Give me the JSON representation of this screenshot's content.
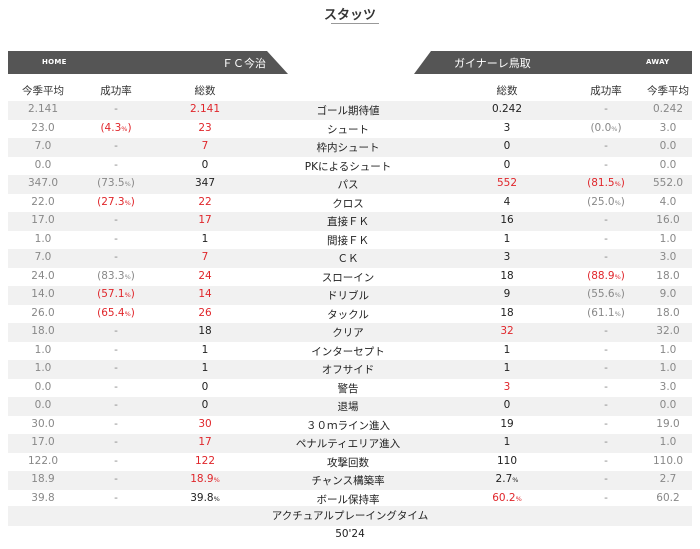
{
  "page_title": "スタッツ",
  "home": {
    "tag": "HOME",
    "name": "ＦＣ今治"
  },
  "away": {
    "tag": "AWAY",
    "name": "ガイナーレ鳥取"
  },
  "headers": {
    "season_avg": "今季平均",
    "success_rate": "成功率",
    "total": "総数"
  },
  "colors": {
    "highlight": "#e0262b",
    "bar": "#555555",
    "shade": "#f1f1f1"
  },
  "rows": [
    {
      "label": "ゴール期待値",
      "home_avg": "2.141",
      "home_pct": "-",
      "home_total": "2.141",
      "away_total": "0.242",
      "away_pct": "-",
      "away_avg": "0.242",
      "home_hi": true,
      "away_hi": false,
      "home_total_unit": "",
      "away_total_unit": ""
    },
    {
      "label": "シュート",
      "home_avg": "23.0",
      "home_pct": "(4.3",
      "home_pct_unit": "%",
      "home_pct_close": ")",
      "home_total": "23",
      "away_total": "3",
      "away_pct": "(0.0",
      "away_pct_unit": "%",
      "away_pct_close": ")",
      "away_avg": "3.0",
      "home_hi": true,
      "away_hi": false,
      "home_pct_hi": true,
      "away_pct_hi": false
    },
    {
      "label": "枠内シュート",
      "home_avg": "7.0",
      "home_pct": "-",
      "home_total": "7",
      "away_total": "0",
      "away_pct": "-",
      "away_avg": "0.0",
      "home_hi": true,
      "away_hi": false
    },
    {
      "label": "PKによるシュート",
      "home_avg": "0.0",
      "home_pct": "-",
      "home_total": "0",
      "away_total": "0",
      "away_pct": "-",
      "away_avg": "0.0",
      "home_hi": false,
      "away_hi": false
    },
    {
      "label": "パス",
      "home_avg": "347.0",
      "home_pct": "(73.5",
      "home_pct_unit": "%",
      "home_pct_close": ")",
      "home_total": "347",
      "away_total": "552",
      "away_pct": "(81.5",
      "away_pct_unit": "%",
      "away_pct_close": ")",
      "away_avg": "552.0",
      "home_hi": false,
      "away_hi": true,
      "home_pct_hi": false,
      "away_pct_hi": true
    },
    {
      "label": "クロス",
      "home_avg": "22.0",
      "home_pct": "(27.3",
      "home_pct_unit": "%",
      "home_pct_close": ")",
      "home_total": "22",
      "away_total": "4",
      "away_pct": "(25.0",
      "away_pct_unit": "%",
      "away_pct_close": ")",
      "away_avg": "4.0",
      "home_hi": true,
      "away_hi": false,
      "home_pct_hi": true,
      "away_pct_hi": false
    },
    {
      "label": "直接ＦＫ",
      "home_avg": "17.0",
      "home_pct": "-",
      "home_total": "17",
      "away_total": "16",
      "away_pct": "-",
      "away_avg": "16.0",
      "home_hi": true,
      "away_hi": false
    },
    {
      "label": "間接ＦＫ",
      "home_avg": "1.0",
      "home_pct": "-",
      "home_total": "1",
      "away_total": "1",
      "away_pct": "-",
      "away_avg": "1.0",
      "home_hi": false,
      "away_hi": false
    },
    {
      "label": "ＣＫ",
      "home_avg": "7.0",
      "home_pct": "-",
      "home_total": "7",
      "away_total": "3",
      "away_pct": "-",
      "away_avg": "3.0",
      "home_hi": true,
      "away_hi": false
    },
    {
      "label": "スローイン",
      "home_avg": "24.0",
      "home_pct": "(83.3",
      "home_pct_unit": "%",
      "home_pct_close": ")",
      "home_total": "24",
      "away_total": "18",
      "away_pct": "(88.9",
      "away_pct_unit": "%",
      "away_pct_close": ")",
      "away_avg": "18.0",
      "home_hi": true,
      "away_hi": false,
      "home_pct_hi": false,
      "away_pct_hi": true
    },
    {
      "label": "ドリブル",
      "home_avg": "14.0",
      "home_pct": "(57.1",
      "home_pct_unit": "%",
      "home_pct_close": ")",
      "home_total": "14",
      "away_total": "9",
      "away_pct": "(55.6",
      "away_pct_unit": "%",
      "away_pct_close": ")",
      "away_avg": "9.0",
      "home_hi": true,
      "away_hi": false,
      "home_pct_hi": true,
      "away_pct_hi": false
    },
    {
      "label": "タックル",
      "home_avg": "26.0",
      "home_pct": "(65.4",
      "home_pct_unit": "%",
      "home_pct_close": ")",
      "home_total": "26",
      "away_total": "18",
      "away_pct": "(61.1",
      "away_pct_unit": "%",
      "away_pct_close": ")",
      "away_avg": "18.0",
      "home_hi": true,
      "away_hi": false,
      "home_pct_hi": true,
      "away_pct_hi": false
    },
    {
      "label": "クリア",
      "home_avg": "18.0",
      "home_pct": "-",
      "home_total": "18",
      "away_total": "32",
      "away_pct": "-",
      "away_avg": "32.0",
      "home_hi": false,
      "away_hi": true
    },
    {
      "label": "インターセプト",
      "home_avg": "1.0",
      "home_pct": "-",
      "home_total": "1",
      "away_total": "1",
      "away_pct": "-",
      "away_avg": "1.0",
      "home_hi": false,
      "away_hi": false
    },
    {
      "label": "オフサイド",
      "home_avg": "1.0",
      "home_pct": "-",
      "home_total": "1",
      "away_total": "1",
      "away_pct": "-",
      "away_avg": "1.0",
      "home_hi": false,
      "away_hi": false
    },
    {
      "label": "警告",
      "home_avg": "0.0",
      "home_pct": "-",
      "home_total": "0",
      "away_total": "3",
      "away_pct": "-",
      "away_avg": "3.0",
      "home_hi": false,
      "away_hi": true
    },
    {
      "label": "退場",
      "home_avg": "0.0",
      "home_pct": "-",
      "home_total": "0",
      "away_total": "0",
      "away_pct": "-",
      "away_avg": "0.0",
      "home_hi": false,
      "away_hi": false
    },
    {
      "label": "３０ｍライン進入",
      "home_avg": "30.0",
      "home_pct": "-",
      "home_total": "30",
      "away_total": "19",
      "away_pct": "-",
      "away_avg": "19.0",
      "home_hi": true,
      "away_hi": false
    },
    {
      "label": "ペナルティエリア進入",
      "home_avg": "17.0",
      "home_pct": "-",
      "home_total": "17",
      "away_total": "1",
      "away_pct": "-",
      "away_avg": "1.0",
      "home_hi": true,
      "away_hi": false
    },
    {
      "label": "攻撃回数",
      "home_avg": "122.0",
      "home_pct": "-",
      "home_total": "122",
      "away_total": "110",
      "away_pct": "-",
      "away_avg": "110.0",
      "home_hi": true,
      "away_hi": false
    },
    {
      "label": "チャンス構築率",
      "home_avg": "18.9",
      "home_pct": "-",
      "home_total": "18.9",
      "home_total_unit": "%",
      "away_total": "2.7",
      "away_total_unit": "%",
      "away_pct": "-",
      "away_avg": "2.7",
      "home_hi": true,
      "away_hi": false
    },
    {
      "label": "ボール保持率",
      "home_avg": "39.8",
      "home_pct": "-",
      "home_total": "39.8",
      "home_total_unit": "%",
      "away_total": "60.2",
      "away_total_unit": "%",
      "away_pct": "-",
      "away_avg": "60.2",
      "home_hi": false,
      "away_hi": true
    }
  ],
  "actual_playing_time": {
    "label": "アクチュアルプレーイングタイム",
    "value": "50'24"
  }
}
